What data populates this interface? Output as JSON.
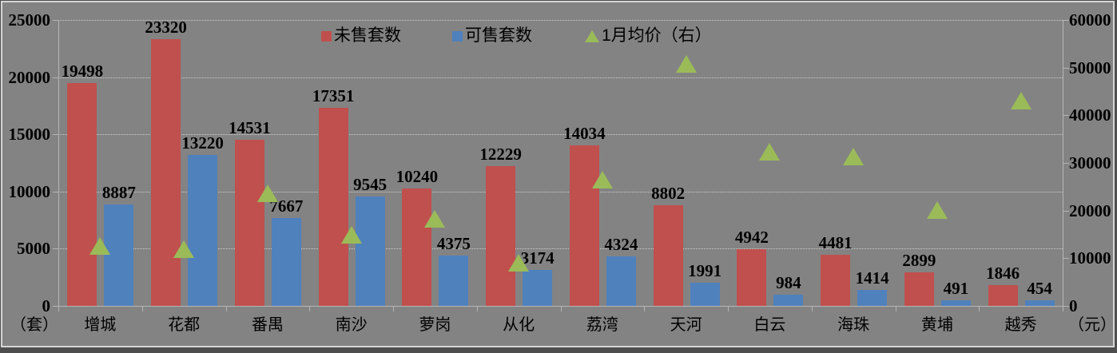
{
  "frame": {
    "background_color": "#838383",
    "border_color": "#d6d6d6",
    "gridline_color": "#cdcdcd",
    "axis_color": "#b5b5b5"
  },
  "legend": {
    "position": "top-center",
    "items": [
      {
        "label": "未售套数",
        "marker": "square",
        "color": "#C0504D"
      },
      {
        "label": "可售套数",
        "marker": "square",
        "color": "#4F81BD"
      },
      {
        "label": "1月均价（右）",
        "marker": "triangle",
        "color": "#9BBB59"
      }
    ]
  },
  "axis_units": {
    "left": "（套）",
    "right": "（元）"
  },
  "chart_data": {
    "type": "bar",
    "title": "",
    "categories": [
      "增城",
      "花都",
      "番禺",
      "南沙",
      "萝岗",
      "从化",
      "荔湾",
      "天河",
      "白云",
      "海珠",
      "黄埔",
      "越秀"
    ],
    "series": [
      {
        "name": "未售套数",
        "type": "bar",
        "axis": "left",
        "color": "#C0504D",
        "data_labels_shown": true,
        "values": [
          19498,
          23320,
          14531,
          17351,
          10240,
          12229,
          14034,
          8802,
          4942,
          4481,
          2899,
          1846
        ]
      },
      {
        "name": "可售套数",
        "type": "bar",
        "axis": "left",
        "color": "#4F81BD",
        "data_labels_shown": true,
        "values": [
          8887,
          13220,
          7667,
          9545,
          4375,
          3174,
          4324,
          1991,
          984,
          1414,
          491,
          454
        ]
      },
      {
        "name": "1月均价（右）",
        "type": "scatter",
        "marker": "triangle",
        "axis": "right",
        "color": "#9BBB59",
        "data_labels_shown": false,
        "values_estimated_from_position": [
          12600,
          11900,
          23700,
          14900,
          18200,
          9000,
          26500,
          50800,
          32300,
          31300,
          20100,
          43100
        ]
      }
    ],
    "left_axis": {
      "min": 0,
      "max": 25000,
      "tick_step": 5000,
      "ticks": [
        0,
        5000,
        10000,
        15000,
        20000,
        25000
      ],
      "unit": "（套）"
    },
    "right_axis": {
      "min": 0,
      "max": 60000,
      "tick_step": 10000,
      "ticks": [
        0,
        10000,
        20000,
        30000,
        40000,
        50000,
        60000
      ],
      "unit": "（元）"
    },
    "grid": {
      "horizontal": true,
      "style": "dotted"
    },
    "legend_position": "top-center",
    "plot_background": "#838383"
  }
}
